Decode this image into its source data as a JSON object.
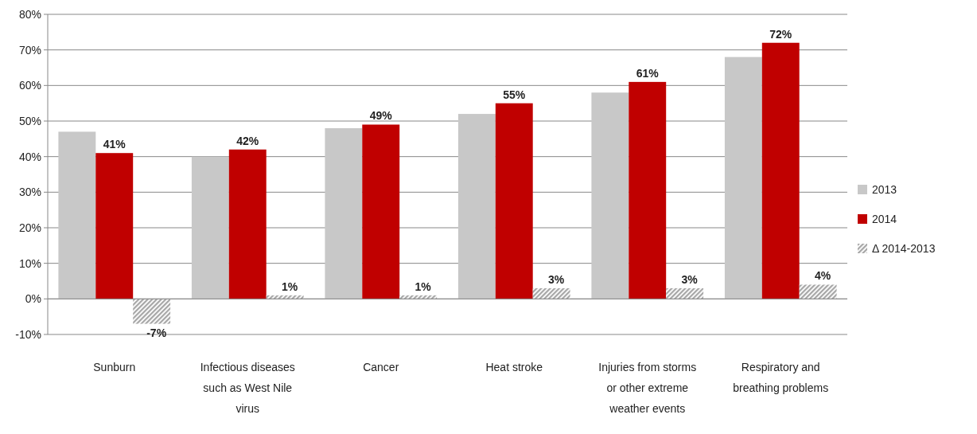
{
  "chart_data": {
    "type": "bar",
    "categories": [
      "Sunburn",
      "Infectious diseases such as West Nile virus",
      "Cancer",
      "Heat stroke",
      "Injuries from storms or other extreme weather events",
      "Respiratory and breathing problems"
    ],
    "series": [
      {
        "name": "2013",
        "color": "#c8c8c8",
        "values": [
          47,
          40,
          48,
          52,
          58,
          68
        ]
      },
      {
        "name": "2014",
        "color": "#c00000",
        "values": [
          41,
          42,
          49,
          55,
          61,
          72
        ],
        "value_labels": [
          "41%",
          "42%",
          "49%",
          "55%",
          "61%",
          "72%"
        ]
      },
      {
        "name": "Δ 2014-2013",
        "color": "#a6a6a6",
        "values": [
          -7,
          1,
          1,
          3,
          3,
          4
        ],
        "value_labels": [
          "-7%",
          "1%",
          "1%",
          "3%",
          "3%",
          "4%"
        ]
      }
    ],
    "ylim": [
      -10,
      80
    ],
    "yticks": [
      {
        "value": -10,
        "label": "-10%"
      },
      {
        "value": 0,
        "label": "0%"
      },
      {
        "value": 10,
        "label": "10%"
      },
      {
        "value": 20,
        "label": "20%"
      },
      {
        "value": 30,
        "label": "30%"
      },
      {
        "value": 40,
        "label": "40%"
      },
      {
        "value": 50,
        "label": "50%"
      },
      {
        "value": 60,
        "label": "60%"
      },
      {
        "value": 70,
        "label": "70%"
      },
      {
        "value": 80,
        "label": "80%"
      }
    ],
    "grid": "y",
    "legend": "right"
  }
}
